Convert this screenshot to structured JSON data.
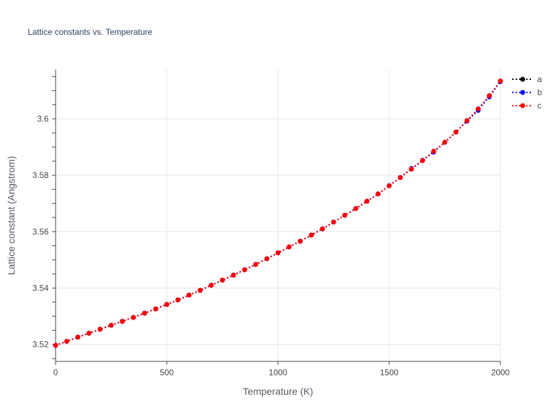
{
  "chart_data": {
    "type": "line",
    "title": "Lattice constants vs. Temperature",
    "xlabel": "Temperature (K)",
    "ylabel": "Lattice constant (Angstrom)",
    "xlim": [
      0,
      2000
    ],
    "ylim": [
      3.514,
      3.6175
    ],
    "x_ticks": [
      0,
      500,
      1000,
      1500,
      2000
    ],
    "x_tick_labels": [
      "0",
      "500",
      "1000",
      "1500",
      "2000"
    ],
    "y_ticks": [
      3.52,
      3.54,
      3.56,
      3.58,
      3.6
    ],
    "y_tick_labels": [
      "3.52",
      "3.54",
      "3.56",
      "3.58",
      "3.6"
    ],
    "grid": true,
    "legend_position": "top-right",
    "line_style": "dotted",
    "x": [
      0,
      50,
      100,
      150,
      200,
      250,
      300,
      350,
      400,
      450,
      500,
      550,
      600,
      650,
      700,
      750,
      800,
      850,
      900,
      950,
      1000,
      1050,
      1100,
      1150,
      1200,
      1250,
      1300,
      1350,
      1400,
      1450,
      1500,
      1550,
      1600,
      1650,
      1700,
      1750,
      1800,
      1850,
      1900,
      1950,
      2000
    ],
    "series": [
      {
        "name": "a",
        "color": "#000000",
        "values": [
          3.5197,
          3.5211,
          3.5226,
          3.524,
          3.5254,
          3.5268,
          3.5282,
          3.5296,
          3.5311,
          3.5326,
          3.5342,
          3.5358,
          3.5375,
          3.5392,
          3.541,
          3.5428,
          3.5446,
          3.5465,
          3.5484,
          3.5504,
          3.5525,
          3.5546,
          3.5566,
          3.5588,
          3.561,
          3.5634,
          3.5658,
          3.5682,
          3.5708,
          3.5734,
          3.5763,
          3.5792,
          3.5822,
          3.5852,
          3.5885,
          3.5917,
          3.5953,
          3.5994,
          3.6035,
          3.6082,
          3.6134
        ]
      },
      {
        "name": "b",
        "color": "#0000ff",
        "values": [
          3.5197,
          3.5211,
          3.5226,
          3.524,
          3.5254,
          3.5268,
          3.5282,
          3.5296,
          3.5311,
          3.5326,
          3.5342,
          3.5358,
          3.5375,
          3.5392,
          3.541,
          3.5428,
          3.5446,
          3.5465,
          3.5484,
          3.5504,
          3.5525,
          3.5546,
          3.5566,
          3.5588,
          3.561,
          3.5634,
          3.5658,
          3.5682,
          3.5708,
          3.5734,
          3.5763,
          3.5792,
          3.5824,
          3.5853,
          3.5882,
          3.5917,
          3.5953,
          3.5992,
          3.603,
          3.6078,
          3.6132
        ]
      },
      {
        "name": "c",
        "color": "#ff0000",
        "values": [
          3.5197,
          3.5211,
          3.5226,
          3.524,
          3.5254,
          3.5268,
          3.5282,
          3.5296,
          3.5311,
          3.5326,
          3.5342,
          3.5358,
          3.5375,
          3.5392,
          3.541,
          3.5428,
          3.5446,
          3.5465,
          3.5484,
          3.5504,
          3.5525,
          3.5546,
          3.5566,
          3.5588,
          3.561,
          3.5634,
          3.5658,
          3.5682,
          3.5708,
          3.5734,
          3.5763,
          3.5792,
          3.5822,
          3.5852,
          3.5885,
          3.5917,
          3.5953,
          3.5994,
          3.6035,
          3.6082,
          3.6134
        ]
      }
    ]
  }
}
